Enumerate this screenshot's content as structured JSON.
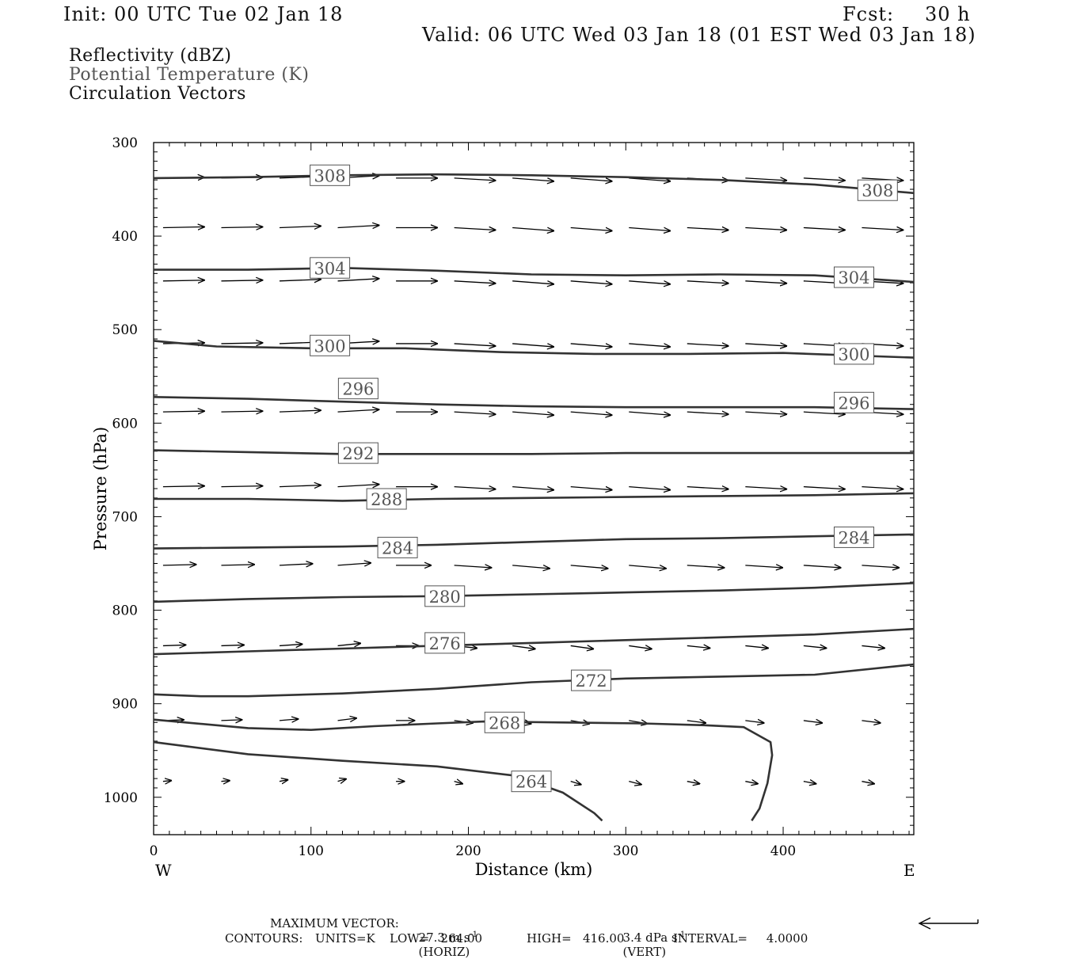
{
  "header": {
    "init": "Init: 00 UTC Tue 02 Jan 18",
    "fcst_label": "Fcst:",
    "fcst_value": "30 h",
    "valid": "Valid: 06 UTC Wed 03 Jan 18 (01 EST Wed 03 Jan 18)"
  },
  "legend": {
    "line1": "Reflectivity (dBZ)",
    "line2": "Potential Temperature (K)",
    "line3": "Circulation Vectors"
  },
  "footer": {
    "max_vector_label": "MAXIMUM VECTOR:",
    "horiz_value": "27.3 m s",
    "horiz_unit": "(HORIZ)",
    "vert_value": "3.4 dPa s",
    "vert_unit": "(VERT)",
    "exponent": "-1",
    "contours_label": "CONTOURS:",
    "units": "UNITS=K",
    "low": "LOW=   264.00",
    "high": "HIGH=   416.00",
    "interval": "INTERVAL=     4.0000"
  },
  "colors": {
    "line": "#333333",
    "axis": "#000000",
    "label_gray": "#555555"
  },
  "chart_data": {
    "type": "line",
    "title": "",
    "xlabel": "Distance (km)",
    "ylabel": "Pressure (hPa)",
    "xlim": [
      0,
      483
    ],
    "ylim": [
      300,
      1040
    ],
    "y_reversed": true,
    "grid": false,
    "x_ticks": [
      0,
      100,
      200,
      300,
      400
    ],
    "y_ticks": [
      300,
      400,
      500,
      600,
      700,
      800,
      900,
      1000
    ],
    "x_end_labels": {
      "left": "W",
      "right": "E"
    },
    "contours": [
      {
        "value": 308,
        "label": "308",
        "labels_at": [
          [
            112,
            335
          ],
          [
            460,
            351
          ]
        ],
        "points": [
          [
            0,
            338
          ],
          [
            60,
            337
          ],
          [
            120,
            335
          ],
          [
            180,
            334
          ],
          [
            240,
            335
          ],
          [
            300,
            337
          ],
          [
            360,
            340
          ],
          [
            420,
            345
          ],
          [
            483,
            354
          ]
        ]
      },
      {
        "value": 304,
        "label": "304",
        "labels_at": [
          [
            112,
            434
          ],
          [
            445,
            444
          ]
        ],
        "points": [
          [
            0,
            436
          ],
          [
            60,
            436
          ],
          [
            120,
            434
          ],
          [
            180,
            437
          ],
          [
            240,
            441
          ],
          [
            300,
            442
          ],
          [
            360,
            441
          ],
          [
            420,
            442
          ],
          [
            483,
            449
          ]
        ]
      },
      {
        "value": 300,
        "label": "300",
        "labels_at": [
          [
            112,
            517
          ],
          [
            445,
            526
          ]
        ],
        "points": [
          [
            0,
            512
          ],
          [
            40,
            518
          ],
          [
            100,
            520
          ],
          [
            160,
            520
          ],
          [
            220,
            524
          ],
          [
            280,
            526
          ],
          [
            340,
            526
          ],
          [
            400,
            525
          ],
          [
            483,
            530
          ]
        ]
      },
      {
        "value": 296,
        "label": "296",
        "labels_at": [
          [
            130,
            563
          ],
          [
            445,
            578
          ]
        ],
        "points": [
          [
            0,
            572
          ],
          [
            60,
            574
          ],
          [
            120,
            577
          ],
          [
            180,
            580
          ],
          [
            240,
            582
          ],
          [
            300,
            583
          ],
          [
            360,
            583
          ],
          [
            420,
            583
          ],
          [
            483,
            585
          ]
        ]
      },
      {
        "value": 292,
        "label": "292",
        "labels_at": [
          [
            130,
            632
          ]
        ],
        "points": [
          [
            0,
            629
          ],
          [
            60,
            631
          ],
          [
            120,
            633
          ],
          [
            180,
            633
          ],
          [
            240,
            633
          ],
          [
            300,
            632
          ],
          [
            360,
            632
          ],
          [
            420,
            632
          ],
          [
            483,
            632
          ]
        ]
      },
      {
        "value": 288,
        "label": "288",
        "labels_at": [
          [
            148,
            681
          ]
        ],
        "points": [
          [
            0,
            681
          ],
          [
            60,
            681
          ],
          [
            120,
            683
          ],
          [
            180,
            681
          ],
          [
            240,
            680
          ],
          [
            300,
            679
          ],
          [
            360,
            678
          ],
          [
            420,
            677
          ],
          [
            483,
            675
          ]
        ]
      },
      {
        "value": 284,
        "label": "284",
        "labels_at": [
          [
            155,
            733
          ],
          [
            445,
            722
          ]
        ],
        "points": [
          [
            0,
            734
          ],
          [
            60,
            733
          ],
          [
            120,
            732
          ],
          [
            180,
            730
          ],
          [
            240,
            727
          ],
          [
            300,
            724
          ],
          [
            360,
            723
          ],
          [
            420,
            721
          ],
          [
            483,
            719
          ]
        ]
      },
      {
        "value": 280,
        "label": "280",
        "labels_at": [
          [
            185,
            785
          ]
        ],
        "points": [
          [
            0,
            791
          ],
          [
            60,
            788
          ],
          [
            120,
            786
          ],
          [
            180,
            785
          ],
          [
            240,
            783
          ],
          [
            300,
            781
          ],
          [
            360,
            779
          ],
          [
            420,
            776
          ],
          [
            483,
            771
          ]
        ]
      },
      {
        "value": 276,
        "label": "276",
        "labels_at": [
          [
            185,
            835
          ]
        ],
        "points": [
          [
            0,
            847
          ],
          [
            60,
            844
          ],
          [
            120,
            841
          ],
          [
            180,
            838
          ],
          [
            240,
            835
          ],
          [
            300,
            832
          ],
          [
            360,
            829
          ],
          [
            420,
            826
          ],
          [
            483,
            820
          ]
        ]
      },
      {
        "value": 272,
        "label": "272",
        "labels_at": [
          [
            278,
            875
          ]
        ],
        "points": [
          [
            0,
            890
          ],
          [
            30,
            892
          ],
          [
            60,
            892
          ],
          [
            120,
            889
          ],
          [
            180,
            884
          ],
          [
            240,
            877
          ],
          [
            300,
            873
          ],
          [
            360,
            871
          ],
          [
            420,
            869
          ],
          [
            483,
            858
          ]
        ]
      },
      {
        "value": 268,
        "label": "268",
        "labels_at": [
          [
            223,
            920
          ]
        ],
        "points": [
          [
            0,
            917
          ],
          [
            60,
            926
          ],
          [
            100,
            928
          ],
          [
            140,
            924
          ],
          [
            180,
            921
          ],
          [
            210,
            919
          ],
          [
            260,
            920
          ],
          [
            310,
            921
          ],
          [
            350,
            923
          ],
          [
            375,
            925
          ],
          [
            392,
            941
          ],
          [
            393,
            955
          ],
          [
            390,
            985
          ],
          [
            385,
            1012
          ],
          [
            380,
            1025
          ]
        ]
      },
      {
        "value": 264,
        "label": "264",
        "labels_at": [
          [
            240,
            983
          ]
        ],
        "points": [
          [
            0,
            941
          ],
          [
            60,
            954
          ],
          [
            120,
            961
          ],
          [
            180,
            967
          ],
          [
            230,
            977
          ],
          [
            260,
            995
          ],
          [
            280,
            1017
          ],
          [
            285,
            1025
          ]
        ]
      }
    ],
    "vector_rows": [
      {
        "p": 338,
        "u": [
          1,
          1,
          1,
          1,
          1,
          1,
          1,
          1,
          1,
          1,
          1,
          1,
          1,
          1
        ],
        "dp": [
          -1,
          -1,
          -2,
          -3,
          0,
          3,
          4,
          4,
          4,
          3,
          3,
          3,
          3,
          3
        ]
      },
      {
        "p": 391,
        "u": [
          1,
          1,
          1,
          1,
          1,
          1,
          1,
          1,
          1,
          1,
          1,
          1,
          1,
          1
        ],
        "dp": [
          -1,
          -1,
          -2,
          -3,
          0,
          3,
          4,
          4,
          4,
          3,
          3,
          3,
          3,
          3
        ]
      },
      {
        "p": 448,
        "u": [
          1,
          1,
          1,
          1,
          1,
          1,
          1,
          1,
          1,
          1,
          1,
          1,
          1,
          1
        ],
        "dp": [
          -1,
          -1,
          -2,
          -3,
          0,
          3,
          4,
          4,
          4,
          3,
          3,
          3,
          3,
          3
        ]
      },
      {
        "p": 515,
        "u": [
          1,
          1,
          1,
          1,
          1,
          1,
          1,
          1,
          1,
          1,
          1,
          1,
          1,
          1
        ],
        "dp": [
          -1,
          -1,
          -2,
          -3,
          0,
          3,
          4,
          4,
          4,
          3,
          3,
          3,
          3,
          3
        ]
      },
      {
        "p": 588,
        "u": [
          1,
          1,
          1,
          1,
          1,
          1,
          1,
          1,
          1,
          1,
          1,
          1,
          1,
          1
        ],
        "dp": [
          -1,
          -1,
          -2,
          -3,
          0,
          3,
          4,
          4,
          4,
          3,
          3,
          3,
          3,
          3
        ]
      },
      {
        "p": 668,
        "u": [
          1,
          1,
          1,
          1,
          1,
          1,
          1,
          1,
          1,
          1,
          1,
          1,
          1,
          1
        ],
        "dp": [
          -1,
          -1,
          -2,
          -3,
          0,
          3,
          4,
          4,
          4,
          3,
          3,
          3,
          3,
          3
        ]
      },
      {
        "p": 752,
        "u": [
          0.8,
          0.8,
          0.8,
          0.8,
          0.85,
          0.9,
          0.9,
          0.9,
          0.9,
          0.9,
          0.9,
          0.9,
          0.9,
          0.9
        ],
        "dp": [
          -1,
          -1,
          -2,
          -3,
          0,
          3,
          4,
          4,
          4,
          3,
          3,
          3,
          3,
          3
        ]
      },
      {
        "p": 838,
        "u": [
          0.55,
          0.55,
          0.55,
          0.55,
          0.55,
          0.55,
          0.55,
          0.55,
          0.55,
          0.55,
          0.55,
          0.55,
          0.55,
          0.55
        ],
        "dp": [
          -1,
          -1,
          -2,
          -3,
          0,
          3,
          4,
          4,
          4,
          3,
          3,
          3,
          3,
          3
        ]
      },
      {
        "p": 918,
        "u": [
          0.5,
          0.5,
          0.45,
          0.45,
          0.45,
          0.45,
          0.45,
          0.45,
          0.45,
          0.45,
          0.45,
          0.45,
          0.45,
          0.45
        ],
        "dp": [
          -1,
          -1,
          -2,
          -3,
          0,
          3,
          4,
          4,
          4,
          3,
          3,
          3,
          3,
          3
        ]
      },
      {
        "p": 983,
        "u": [
          0.2,
          0.2,
          0.2,
          0.2,
          0.2,
          0.2,
          0.2,
          0.25,
          0.3,
          0.3,
          0.3,
          0.3,
          0.3,
          0.3
        ],
        "dp": [
          -1,
          -1,
          -2,
          -3,
          0,
          3,
          4,
          4,
          4,
          3,
          3,
          3,
          3,
          3
        ]
      }
    ]
  }
}
